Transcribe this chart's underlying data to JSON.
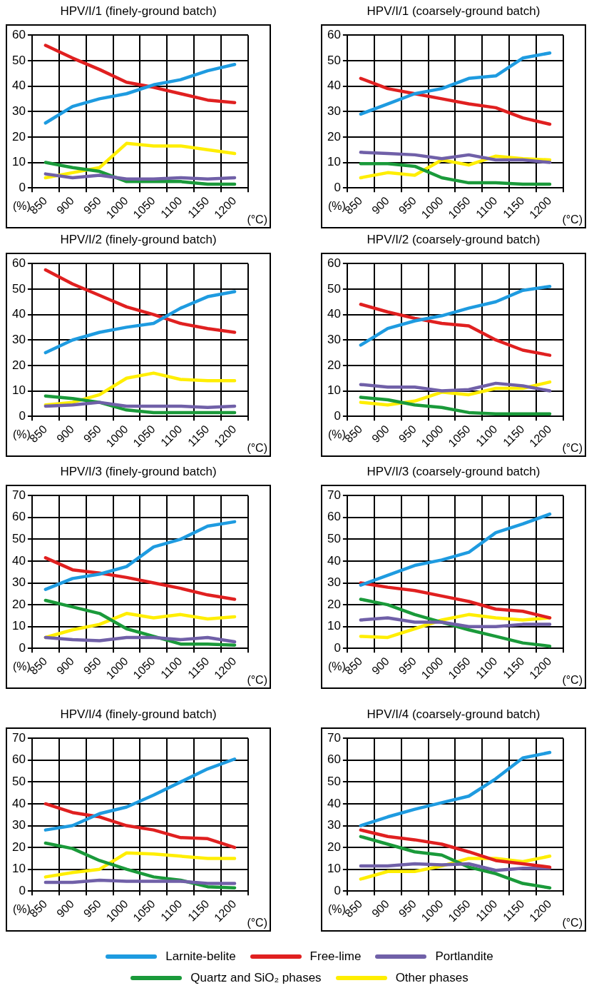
{
  "chart_data": [
    {
      "type": "line",
      "title": "HPV/I/1 (finely-ground batch)",
      "xlabel": "(°C)",
      "ylabel": "(%)",
      "categories": [
        "850",
        "900",
        "950",
        "1000",
        "1050",
        "1100",
        "1150",
        "1200"
      ],
      "ylim": [
        0,
        60
      ],
      "yticks": [
        0,
        10,
        20,
        30,
        40,
        50,
        60
      ],
      "grid": true,
      "marker": "none",
      "line_style": "solid",
      "legend": "bottom",
      "series": [
        {
          "name": "Larnite-belite",
          "color": "#1e9be0",
          "values": [
            25.5,
            32,
            35,
            37,
            40.5,
            42.5,
            46,
            48.5
          ]
        },
        {
          "name": "Free-lime",
          "color": "#e02020",
          "values": [
            56,
            51,
            46.5,
            41.5,
            39.5,
            37,
            34.5,
            33.5
          ]
        },
        {
          "name": "Portlandite",
          "color": "#7060a8",
          "values": [
            5.5,
            4,
            5,
            3.5,
            3.5,
            4,
            3.5,
            4
          ]
        },
        {
          "name": "Quartz and SiO₂ phases",
          "color": "#1a9a3a",
          "values": [
            10,
            8,
            6.5,
            2.5,
            2.5,
            2.5,
            1.5,
            1.5
          ]
        },
        {
          "name": "Other phases",
          "color": "#ffee00",
          "values": [
            4,
            6,
            8,
            17.5,
            16.5,
            16.5,
            15,
            13.5
          ]
        }
      ]
    },
    {
      "type": "line",
      "title": "HPV/I/1 (coarsely-ground batch)",
      "xlabel": "(°C)",
      "ylabel": "(%)",
      "categories": [
        "850",
        "900",
        "950",
        "1000",
        "1050",
        "1100",
        "1150",
        "1200"
      ],
      "ylim": [
        0,
        60
      ],
      "yticks": [
        0,
        10,
        20,
        30,
        40,
        50,
        60
      ],
      "grid": true,
      "marker": "none",
      "line_style": "solid",
      "series": [
        {
          "color": "#1e9be0",
          "values": [
            29,
            33,
            37,
            39,
            43,
            44,
            51,
            53
          ]
        },
        {
          "color": "#e02020",
          "values": [
            43,
            39,
            37,
            35,
            33,
            31.5,
            27.5,
            25
          ]
        },
        {
          "color": "#7060a8",
          "values": [
            14,
            13.5,
            13,
            11.5,
            13,
            11,
            11,
            10
          ]
        },
        {
          "color": "#1a9a3a",
          "values": [
            9.5,
            9.5,
            8.5,
            4,
            2,
            2,
            1.5,
            1.5
          ]
        },
        {
          "color": "#ffee00",
          "values": [
            4,
            6,
            5,
            11,
            9,
            12.5,
            11.5,
            11
          ]
        }
      ]
    },
    {
      "type": "line",
      "title": "HPV/I/2 (finely-ground batch)",
      "xlabel": "(°C)",
      "ylabel": "(%)",
      "categories": [
        "850",
        "900",
        "950",
        "1000",
        "1050",
        "1100",
        "1150",
        "1200"
      ],
      "ylim": [
        0,
        60
      ],
      "yticks": [
        0,
        10,
        20,
        30,
        40,
        50,
        60
      ],
      "grid": true,
      "marker": "none",
      "line_style": "solid",
      "series": [
        {
          "color": "#1e9be0",
          "values": [
            25,
            30,
            33,
            35,
            36.5,
            42.5,
            47,
            49
          ]
        },
        {
          "color": "#e02020",
          "values": [
            57.5,
            52,
            47.5,
            43,
            40,
            36.5,
            34.5,
            33
          ]
        },
        {
          "color": "#7060a8",
          "values": [
            4,
            4.5,
            5.5,
            4,
            4,
            4,
            3.5,
            4
          ]
        },
        {
          "color": "#1a9a3a",
          "values": [
            8,
            7,
            5.5,
            2.5,
            1.5,
            1.5,
            1.5,
            1.5
          ]
        },
        {
          "color": "#ffee00",
          "values": [
            4.5,
            5.5,
            8.5,
            15,
            17,
            14.5,
            14,
            14
          ]
        }
      ]
    },
    {
      "type": "line",
      "title": "HPV/I/2 (coarsely-ground batch)",
      "xlabel": "(°C)",
      "ylabel": "(%)",
      "categories": [
        "850",
        "900",
        "950",
        "1000",
        "1050",
        "1100",
        "1150",
        "1200"
      ],
      "ylim": [
        0,
        60
      ],
      "yticks": [
        0,
        10,
        20,
        30,
        40,
        50,
        60
      ],
      "grid": true,
      "marker": "none",
      "line_style": "solid",
      "series": [
        {
          "color": "#1e9be0",
          "values": [
            28,
            34.5,
            37.5,
            39.5,
            42.5,
            45,
            49.5,
            51
          ]
        },
        {
          "color": "#e02020",
          "values": [
            44,
            41,
            38.5,
            36.5,
            35.5,
            30,
            26,
            24
          ]
        },
        {
          "color": "#7060a8",
          "values": [
            12.5,
            11.5,
            11.5,
            10,
            10.5,
            13,
            12,
            10
          ]
        },
        {
          "color": "#1a9a3a",
          "values": [
            7.5,
            6.5,
            4.5,
            3.5,
            1.5,
            1,
            1,
            1
          ]
        },
        {
          "color": "#ffee00",
          "values": [
            5.5,
            4.5,
            6,
            9.5,
            8.5,
            11,
            11,
            13.5
          ]
        }
      ]
    },
    {
      "type": "line",
      "title": "HPV/I/3 (finely-ground batch)",
      "xlabel": "(°C)",
      "ylabel": "(%)",
      "categories": [
        "850",
        "900",
        "950",
        "1000",
        "1050",
        "1100",
        "1150",
        "1200"
      ],
      "ylim": [
        0,
        70
      ],
      "yticks": [
        0,
        10,
        20,
        30,
        40,
        50,
        60,
        70
      ],
      "grid": true,
      "marker": "none",
      "line_style": "solid",
      "series": [
        {
          "color": "#1e9be0",
          "values": [
            27,
            32,
            34,
            37.5,
            46.5,
            50,
            56,
            58
          ]
        },
        {
          "color": "#e02020",
          "values": [
            41.5,
            36,
            34.5,
            32.5,
            30,
            27.5,
            24.5,
            22.5
          ]
        },
        {
          "color": "#7060a8",
          "values": [
            5,
            4,
            3.5,
            5,
            5,
            4,
            5,
            3
          ]
        },
        {
          "color": "#1a9a3a",
          "values": [
            22,
            19,
            16,
            9,
            5.5,
            2,
            2,
            1.5
          ]
        },
        {
          "color": "#ffee00",
          "values": [
            5,
            8.5,
            11,
            16,
            14,
            15.5,
            13.5,
            14.5
          ]
        }
      ]
    },
    {
      "type": "line",
      "title": "HPV/I/3 (coarsely-ground batch)",
      "xlabel": "(°C)",
      "ylabel": "(%)",
      "categories": [
        "850",
        "900",
        "950",
        "1000",
        "1050",
        "1100",
        "1150",
        "1200"
      ],
      "ylim": [
        0,
        70
      ],
      "yticks": [
        0,
        10,
        20,
        30,
        40,
        50,
        60,
        70
      ],
      "grid": true,
      "marker": "none",
      "line_style": "solid",
      "series": [
        {
          "color": "#1e9be0",
          "values": [
            29,
            33.5,
            38,
            40.5,
            44,
            53,
            57,
            61.5
          ]
        },
        {
          "color": "#e02020",
          "values": [
            30,
            28,
            26.5,
            24,
            21.5,
            18,
            17,
            14
          ]
        },
        {
          "color": "#7060a8",
          "values": [
            13,
            14,
            12,
            12,
            10,
            10,
            11,
            11
          ]
        },
        {
          "color": "#1a9a3a",
          "values": [
            22.5,
            20,
            15.5,
            12,
            8.5,
            5.5,
            2.5,
            1
          ]
        },
        {
          "color": "#ffee00",
          "values": [
            5.5,
            5,
            9,
            13,
            15.5,
            14,
            13,
            14
          ]
        }
      ]
    },
    {
      "type": "line",
      "title": "HPV/I/4 (finely-ground batch)",
      "xlabel": "(°C)",
      "ylabel": "(%)",
      "categories": [
        "850",
        "900",
        "950",
        "1000",
        "1050",
        "1100",
        "1150",
        "1200"
      ],
      "ylim": [
        0,
        70
      ],
      "yticks": [
        0,
        10,
        20,
        30,
        40,
        50,
        60,
        70
      ],
      "grid": true,
      "marker": "none",
      "line_style": "solid",
      "series": [
        {
          "color": "#1e9be0",
          "values": [
            28,
            30,
            35.5,
            38.5,
            44,
            50,
            56,
            60.5
          ]
        },
        {
          "color": "#e02020",
          "values": [
            40,
            36,
            34,
            30,
            28,
            24.5,
            24,
            20
          ]
        },
        {
          "color": "#7060a8",
          "values": [
            4,
            4,
            5,
            4.5,
            4.5,
            4.5,
            3.5,
            3.5
          ]
        },
        {
          "color": "#1a9a3a",
          "values": [
            22,
            19.5,
            14,
            10,
            6.5,
            5,
            2,
            1.5
          ]
        },
        {
          "color": "#ffee00",
          "values": [
            6.5,
            8.5,
            10,
            17.5,
            17,
            16,
            15,
            15
          ]
        }
      ]
    },
    {
      "type": "line",
      "title": "HPV/I/4 (coarsely-ground batch)",
      "xlabel": "(°C)",
      "ylabel": "(%)",
      "categories": [
        "850",
        "900",
        "950",
        "1000",
        "1050",
        "1100",
        "1150",
        "1200"
      ],
      "ylim": [
        0,
        70
      ],
      "yticks": [
        0,
        10,
        20,
        30,
        40,
        50,
        60,
        70
      ],
      "grid": true,
      "marker": "none",
      "line_style": "solid",
      "series": [
        {
          "color": "#1e9be0",
          "values": [
            30,
            34,
            37.5,
            40.5,
            43.5,
            51.5,
            61,
            63.5
          ]
        },
        {
          "color": "#e02020",
          "values": [
            28,
            25,
            23.5,
            21.5,
            18,
            14,
            12.5,
            11
          ]
        },
        {
          "color": "#7060a8",
          "values": [
            11.5,
            11.5,
            12.5,
            12,
            12.5,
            9.5,
            10.5,
            10.5
          ]
        },
        {
          "color": "#1a9a3a",
          "values": [
            25,
            21.5,
            18,
            16.5,
            11,
            8,
            3.5,
            1.5
          ]
        },
        {
          "color": "#ffee00",
          "values": [
            5.5,
            9,
            9,
            11.5,
            15,
            15,
            13.5,
            16
          ]
        }
      ]
    }
  ]
}
